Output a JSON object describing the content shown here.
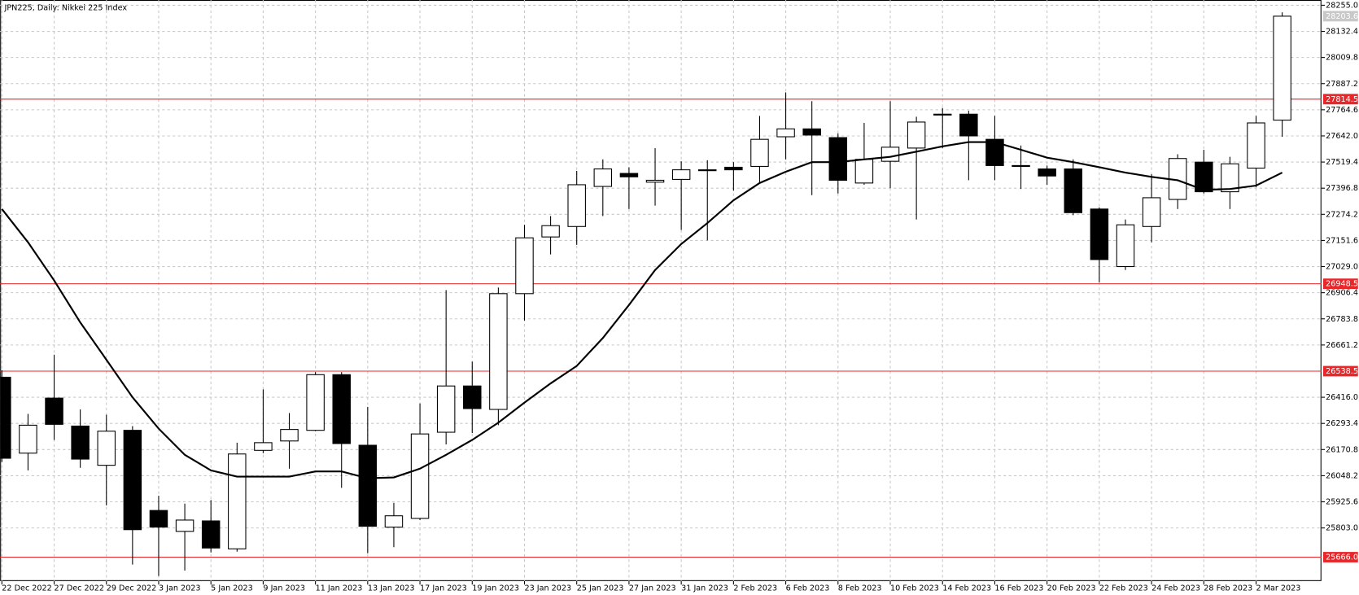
{
  "chart_data": {
    "type": "candlestick",
    "title": "JPN225, Daily:  Nikkei 225 Index",
    "categories": [
      "22 Dec 2022",
      null,
      "27 Dec 2022",
      null,
      "29 Dec 2022",
      null,
      "3 Jan 2023",
      null,
      "5 Jan 2023",
      null,
      "9 Jan 2023",
      null,
      "11 Jan 2023",
      null,
      "13 Jan 2023",
      null,
      "17 Jan 2023",
      null,
      "19 Jan 2023",
      null,
      "23 Jan 2023",
      null,
      "25 Jan 2023",
      null,
      "27 Jan 2023",
      null,
      "31 Jan 2023",
      null,
      "2 Feb 2023",
      null,
      "6 Feb 2023",
      null,
      "8 Feb 2023",
      null,
      "10 Feb 2023",
      null,
      "14 Feb 2023",
      null,
      "16 Feb 2023",
      null,
      "20 Feb 2023",
      null,
      "22 Feb 2023",
      null,
      "24 Feb 2023",
      null,
      "28 Feb 2023",
      null,
      "2 Mar 2023",
      null
    ],
    "open": [
      26510,
      26154,
      26412,
      26281,
      26097,
      26261,
      25885,
      25787,
      25836,
      25705,
      26167,
      26211,
      26261,
      26522,
      26191,
      25807,
      25848,
      26252,
      26469,
      26359,
      26902,
      27168,
      27217,
      27405,
      27466,
      27425,
      27438,
      27483,
      27495,
      27499,
      27638,
      27675,
      27634,
      27421,
      27523,
      27585,
      27740,
      27744,
      27626,
      27503,
      27487,
      27487,
      27299,
      27029,
      27217,
      27344,
      27519,
      27380,
      27491,
      27716
    ],
    "high": [
      26543,
      26338,
      26616,
      26359,
      26334,
      26281,
      25954,
      25917,
      25934,
      26203,
      26453,
      26342,
      26534,
      26534,
      26371,
      25921,
      26387,
      26919,
      26583,
      26931,
      27225,
      27266,
      27478,
      27532,
      27495,
      27585,
      27523,
      27528,
      27519,
      27736,
      27846,
      27805,
      27654,
      27703,
      27805,
      27732,
      27773,
      27760,
      27736,
      27597,
      27503,
      27532,
      27307,
      27250,
      27462,
      27556,
      27577,
      27544,
      27736,
      28222
    ],
    "low": [
      26113,
      26073,
      26216,
      26085,
      25909,
      25631,
      25578,
      25603,
      25688,
      25692,
      26154,
      26081,
      26257,
      25991,
      25684,
      25713,
      25840,
      26195,
      26248,
      26285,
      26776,
      27086,
      27131,
      27266,
      27299,
      27315,
      27201,
      27152,
      27385,
      27421,
      27532,
      27364,
      27372,
      27413,
      27397,
      27250,
      27585,
      27434,
      27434,
      27393,
      27413,
      27270,
      26955,
      27013,
      27143,
      27299,
      27372,
      27299,
      27401,
      27638
    ],
    "close": [
      26130,
      26285,
      26289,
      26126,
      26257,
      25795,
      25807,
      25840,
      25709,
      26150,
      26203,
      26265,
      26522,
      26199,
      25811,
      25860,
      26244,
      26469,
      26363,
      26902,
      27164,
      27221,
      27413,
      27487,
      27450,
      27434,
      27483,
      27479,
      27483,
      27626,
      27675,
      27646,
      27434,
      27532,
      27589,
      27707,
      27744,
      27642,
      27503,
      27499,
      27454,
      27282,
      27062,
      27225,
      27352,
      27536,
      27380,
      27511,
      27703,
      28203.6
    ],
    "moving_average": {
      "color": "#000000",
      "values": [
        27299,
        27143,
        26964,
        26767,
        26592,
        26416,
        26269,
        26146,
        26073,
        26044,
        26044,
        26044,
        26068,
        26068,
        26036,
        26040,
        26081,
        26146,
        26216,
        26297,
        26391,
        26481,
        26563,
        26694,
        26849,
        27013,
        27135,
        27233,
        27340,
        27421,
        27474,
        27519,
        27519,
        27532,
        27544,
        27568,
        27593,
        27613,
        27613,
        27577,
        27540,
        27519,
        27495,
        27470,
        27450,
        27434,
        27389,
        27393,
        27409,
        27470
      ]
    },
    "up_color": "#ffffff",
    "down_color": "#000000",
    "levels": [
      27814.5,
      26948.5,
      26538.5,
      {
        "value": 25666.0,
        "label": "25666.0"
      }
    ],
    "level_color": "#e8272a",
    "current_price": 28203.6,
    "ylim": [
      25558,
      28255
    ],
    "yticks": [
      {
        "value": 28255.0,
        "label": "28255.0"
      },
      28132.4,
      28009.8,
      27887.2,
      27764.6,
      {
        "value": 27642.0,
        "label": "27642.0"
      },
      27519.4,
      27396.8,
      27274.2,
      27151.6,
      {
        "value": 27029.0,
        "label": "27029.0"
      },
      26906.4,
      26783.8,
      26661.2,
      {
        "value": 26416.0,
        "label": "26416.0"
      },
      26293.4,
      26170.8,
      26048.2,
      25925.6,
      {
        "value": 25803.0,
        "label": "25803.0"
      }
    ],
    "grid": true
  }
}
